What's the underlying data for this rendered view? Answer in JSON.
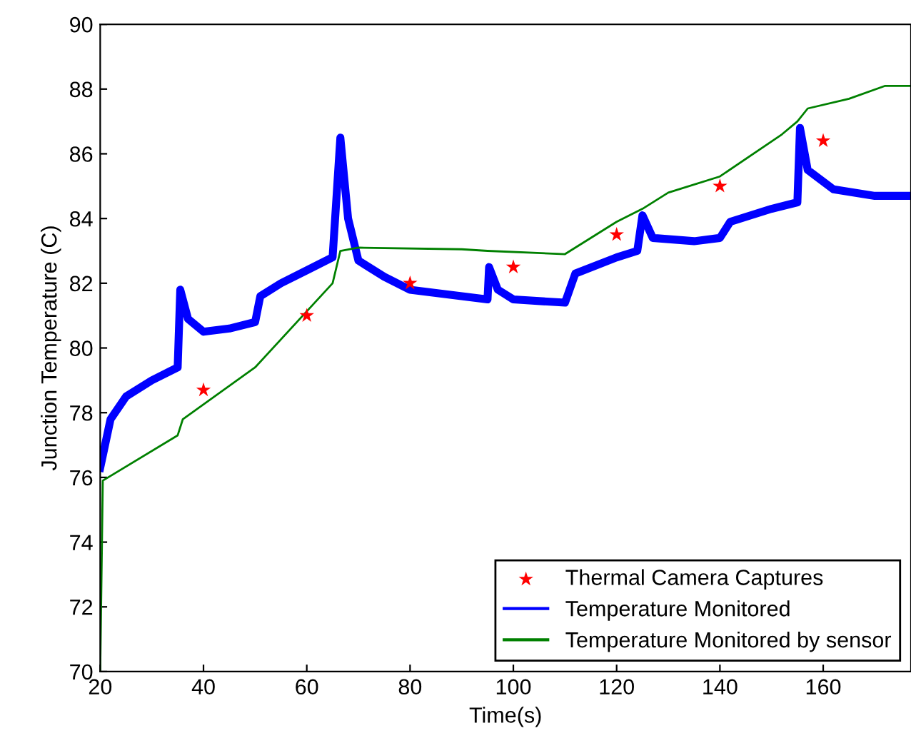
{
  "chart_data": {
    "type": "line",
    "xlabel": "Time(s)",
    "ylabel": "Junction Temperature (C)",
    "xlim": [
      20,
      177
    ],
    "ylim": [
      70,
      90
    ],
    "xticks": [
      20,
      40,
      60,
      80,
      100,
      120,
      140,
      160
    ],
    "yticks": [
      70,
      72,
      74,
      76,
      78,
      80,
      82,
      84,
      86,
      88,
      90
    ],
    "grid": false,
    "legend": "bottom right",
    "series": [
      {
        "name": "Thermal Camera Captures",
        "type": "scatter",
        "marker": "star",
        "color": "#ff0000",
        "x": [
          40,
          60,
          80,
          100,
          120,
          140,
          160
        ],
        "values": [
          78.7,
          81.0,
          82.0,
          82.5,
          83.5,
          85.0,
          86.4
        ]
      },
      {
        "name": "Temperature Monitored",
        "color": "#0000ff",
        "x": [
          20,
          22,
          25,
          30,
          35,
          35.5,
          37,
          40,
          45,
          50,
          51,
          55,
          60,
          65,
          66.5,
          68,
          70,
          75,
          80,
          90,
          95,
          95.3,
          97,
          100,
          110,
          112,
          120,
          124,
          125,
          127,
          135,
          140,
          142,
          150,
          155,
          155.5,
          157,
          162,
          170,
          177
        ],
        "values": [
          76.3,
          77.8,
          78.5,
          79.0,
          79.4,
          81.8,
          80.9,
          80.5,
          80.6,
          80.8,
          81.6,
          82.0,
          82.4,
          82.8,
          86.5,
          84.0,
          82.7,
          82.2,
          81.8,
          81.6,
          81.5,
          82.5,
          81.8,
          81.5,
          81.4,
          82.3,
          82.8,
          83.0,
          84.1,
          83.4,
          83.3,
          83.4,
          83.9,
          84.3,
          84.5,
          86.8,
          85.5,
          84.9,
          84.7,
          84.7
        ]
      },
      {
        "name": "Temperature Monitored by sensor",
        "color": "#008000",
        "x": [
          20,
          20.5,
          35,
          36,
          50,
          65,
          66.5,
          70,
          90,
          95,
          110,
          120,
          125,
          130,
          140,
          152,
          155,
          157,
          165,
          172,
          177
        ],
        "values": [
          70,
          75.9,
          77.3,
          77.8,
          79.4,
          82.0,
          83.0,
          83.1,
          83.05,
          83.0,
          82.9,
          83.9,
          84.3,
          84.8,
          85.3,
          86.6,
          87.0,
          87.4,
          87.7,
          88.1,
          88.1
        ]
      }
    ]
  }
}
